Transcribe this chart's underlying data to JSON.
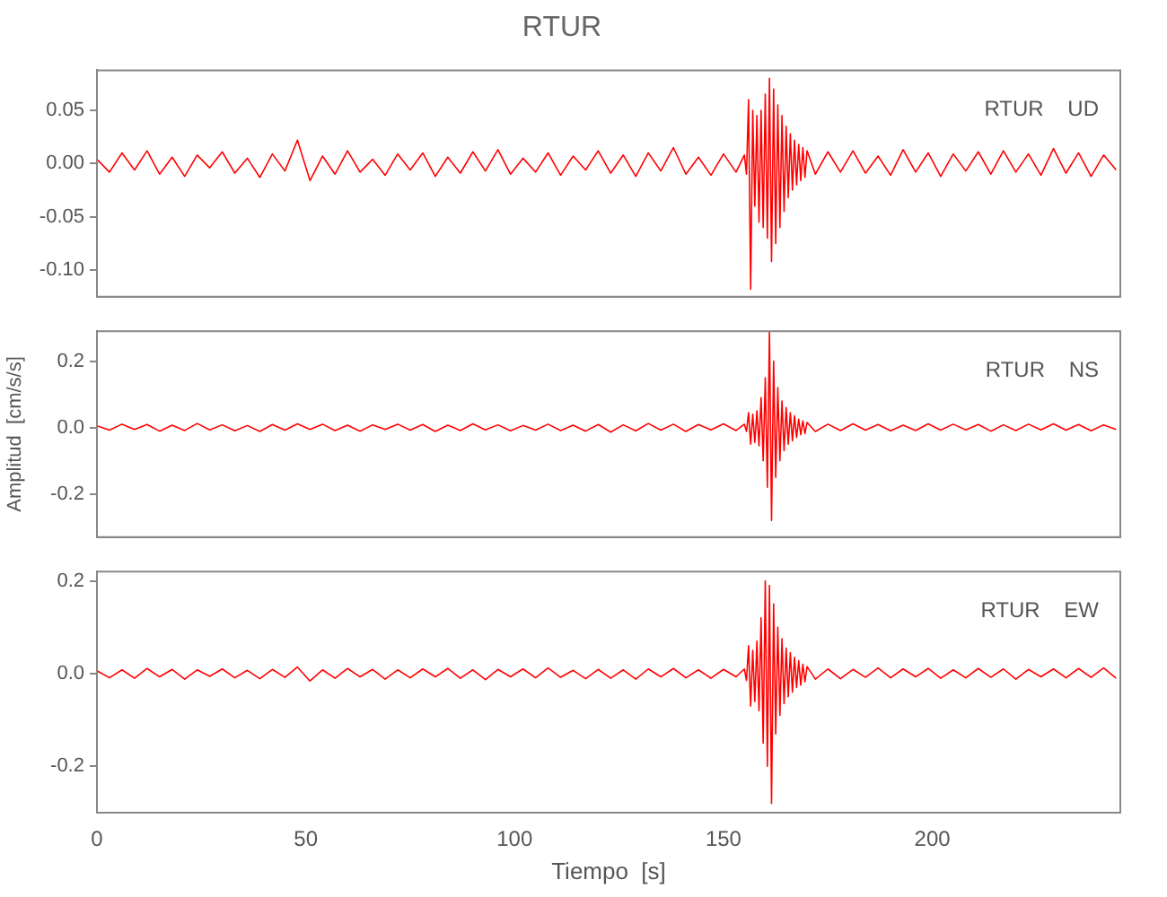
{
  "chart_data": [
    {
      "type": "line",
      "title": "RTUR",
      "annotations": [
        "RTUR    UD"
      ],
      "xlim": [
        0,
        245
      ],
      "xticks": [
        0,
        50,
        100,
        150,
        200
      ],
      "ylim": [
        -0.125,
        0.0875
      ],
      "yticks": [
        {
          "value": -0.1,
          "label": "-0.10"
        },
        {
          "value": -0.05,
          "label": "-0.05"
        },
        {
          "value": 0,
          "label": "0.00"
        },
        {
          "value": 0.05,
          "label": "0.05"
        }
      ],
      "tick_labels": "y",
      "marker": "none",
      "line_style": "solid",
      "x": [
        0,
        3,
        6,
        9,
        12,
        15,
        18,
        21,
        24,
        27,
        30,
        33,
        36,
        39,
        42,
        45,
        48,
        51,
        54,
        57,
        60,
        63,
        66,
        69,
        72,
        75,
        78,
        81,
        84,
        87,
        90,
        93,
        96,
        99,
        102,
        105,
        108,
        111,
        114,
        117,
        120,
        123,
        126,
        129,
        132,
        135,
        138,
        141,
        144,
        147,
        150,
        153,
        155,
        155.5,
        156,
        156.5,
        157,
        157.5,
        158,
        158.5,
        159,
        159.5,
        160,
        160.5,
        161,
        161.5,
        162,
        162.5,
        163,
        163.5,
        164,
        164.5,
        165,
        165.5,
        166,
        166.5,
        167,
        167.5,
        168,
        168.5,
        169,
        169.5,
        170,
        172,
        175,
        178,
        181,
        184,
        187,
        190,
        193,
        196,
        199,
        202,
        205,
        208,
        211,
        214,
        217,
        220,
        223,
        226,
        229,
        232,
        235,
        238,
        241,
        244
      ],
      "series": [
        {
          "color": "#ff0000",
          "values": [
            0.004,
            -0.008,
            0.01,
            -0.006,
            0.012,
            -0.01,
            0.006,
            -0.012,
            0.008,
            -0.004,
            0.011,
            -0.009,
            0.005,
            -0.013,
            0.009,
            -0.007,
            0.022,
            -0.016,
            0.007,
            -0.01,
            0.012,
            -0.008,
            0.004,
            -0.011,
            0.009,
            -0.006,
            0.01,
            -0.012,
            0.006,
            -0.009,
            0.011,
            -0.007,
            0.013,
            -0.01,
            0.005,
            -0.008,
            0.01,
            -0.011,
            0.007,
            -0.006,
            0.012,
            -0.009,
            0.008,
            -0.012,
            0.01,
            -0.007,
            0.015,
            -0.01,
            0.006,
            -0.011,
            0.009,
            -0.008,
            0.008,
            -0.01,
            0.06,
            -0.118,
            0.05,
            -0.04,
            0.045,
            -0.055,
            0.05,
            -0.06,
            0.065,
            -0.07,
            0.08,
            -0.092,
            0.07,
            -0.075,
            0.055,
            -0.06,
            0.045,
            -0.045,
            0.035,
            -0.032,
            0.028,
            -0.025,
            0.022,
            -0.02,
            0.018,
            -0.016,
            0.015,
            -0.013,
            0.012,
            -0.01,
            0.011,
            -0.008,
            0.012,
            -0.009,
            0.007,
            -0.011,
            0.013,
            -0.008,
            0.01,
            -0.012,
            0.009,
            -0.007,
            0.011,
            -0.01,
            0.012,
            -0.008,
            0.009,
            -0.011,
            0.014,
            -0.009,
            0.01,
            -0.012,
            0.008,
            -0.006
          ]
        }
      ]
    },
    {
      "type": "line",
      "ylabel": "Amplitud  [cm/s/s]",
      "annotations": [
        "RTUR    NS"
      ],
      "xlim": [
        0,
        245
      ],
      "xticks": [
        0,
        50,
        100,
        150,
        200
      ],
      "ylim": [
        -0.33,
        0.29
      ],
      "yticks": [
        {
          "value": -0.2,
          "label": "-0.2"
        },
        {
          "value": 0,
          "label": "0.0"
        },
        {
          "value": 0.2,
          "label": "0.2"
        }
      ],
      "tick_labels": "y",
      "marker": "none",
      "line_style": "solid",
      "x": [
        0,
        3,
        6,
        9,
        12,
        15,
        18,
        21,
        24,
        27,
        30,
        33,
        36,
        39,
        42,
        45,
        48,
        51,
        54,
        57,
        60,
        63,
        66,
        69,
        72,
        75,
        78,
        81,
        84,
        87,
        90,
        93,
        96,
        99,
        102,
        105,
        108,
        111,
        114,
        117,
        120,
        123,
        126,
        129,
        132,
        135,
        138,
        141,
        144,
        147,
        150,
        153,
        155,
        155.5,
        156,
        156.5,
        157,
        157.5,
        158,
        158.5,
        159,
        159.5,
        160,
        160.5,
        161,
        161.5,
        162,
        162.5,
        163,
        163.5,
        164,
        164.5,
        165,
        165.5,
        166,
        166.5,
        167,
        167.5,
        168,
        168.5,
        169,
        169.5,
        170,
        172,
        175,
        178,
        181,
        184,
        187,
        190,
        193,
        196,
        199,
        202,
        205,
        208,
        211,
        214,
        217,
        220,
        223,
        226,
        229,
        232,
        235,
        238,
        241,
        244
      ],
      "series": [
        {
          "color": "#ff0000",
          "values": [
            0.005,
            -0.008,
            0.01,
            -0.006,
            0.009,
            -0.011,
            0.007,
            -0.009,
            0.012,
            -0.007,
            0.008,
            -0.01,
            0.006,
            -0.012,
            0.009,
            -0.008,
            0.011,
            -0.006,
            0.01,
            -0.009,
            0.007,
            -0.011,
            0.008,
            -0.006,
            0.01,
            -0.008,
            0.009,
            -0.012,
            0.007,
            -0.009,
            0.011,
            -0.007,
            0.008,
            -0.01,
            0.006,
            -0.008,
            0.01,
            -0.009,
            0.007,
            -0.011,
            0.009,
            -0.014,
            0.008,
            -0.01,
            0.012,
            -0.008,
            0.01,
            -0.012,
            0.009,
            -0.007,
            0.011,
            -0.009,
            0.01,
            -0.012,
            0.045,
            -0.05,
            0.04,
            -0.045,
            0.05,
            -0.055,
            0.09,
            -0.1,
            0.15,
            -0.18,
            0.29,
            -0.28,
            0.2,
            -0.15,
            0.12,
            -0.1,
            0.08,
            -0.07,
            0.06,
            -0.05,
            0.045,
            -0.04,
            0.035,
            -0.03,
            0.025,
            -0.022,
            0.02,
            -0.018,
            0.015,
            -0.012,
            0.01,
            -0.009,
            0.011,
            -0.008,
            0.009,
            -0.01,
            0.007,
            -0.009,
            0.011,
            -0.008,
            0.01,
            -0.007,
            0.009,
            -0.011,
            0.008,
            -0.009,
            0.01,
            -0.007,
            0.011,
            -0.008,
            0.009,
            -0.01,
            0.008,
            -0.006
          ]
        }
      ]
    },
    {
      "type": "line",
      "xlabel": "Tiempo  [s]",
      "annotations": [
        "RTUR    EW"
      ],
      "xlim": [
        0,
        245
      ],
      "xticks": [
        0,
        50,
        100,
        150,
        200
      ],
      "ylim": [
        -0.3,
        0.22
      ],
      "yticks": [
        {
          "value": -0.2,
          "label": "-0.2"
        },
        {
          "value": 0,
          "label": "0.0"
        },
        {
          "value": 0.2,
          "label": "0.2"
        }
      ],
      "marker": "none",
      "line_style": "solid",
      "x": [
        0,
        3,
        6,
        9,
        12,
        15,
        18,
        21,
        24,
        27,
        30,
        33,
        36,
        39,
        42,
        45,
        48,
        51,
        54,
        57,
        60,
        63,
        66,
        69,
        72,
        75,
        78,
        81,
        84,
        87,
        90,
        93,
        96,
        99,
        102,
        105,
        108,
        111,
        114,
        117,
        120,
        123,
        126,
        129,
        132,
        135,
        138,
        141,
        144,
        147,
        150,
        153,
        155,
        155.5,
        156,
        156.5,
        157,
        157.5,
        158,
        158.5,
        159,
        159.5,
        160,
        160.5,
        161,
        161.5,
        162,
        162.5,
        163,
        163.5,
        164,
        164.5,
        165,
        165.5,
        166,
        166.5,
        167,
        167.5,
        168,
        168.5,
        169,
        169.5,
        170,
        172,
        175,
        178,
        181,
        184,
        187,
        190,
        193,
        196,
        199,
        202,
        205,
        208,
        211,
        214,
        217,
        220,
        223,
        226,
        229,
        232,
        235,
        238,
        241,
        244
      ],
      "series": [
        {
          "color": "#ff0000",
          "values": [
            0.006,
            -0.009,
            0.008,
            -0.01,
            0.011,
            -0.007,
            0.009,
            -0.012,
            0.008,
            -0.006,
            0.01,
            -0.009,
            0.007,
            -0.011,
            0.009,
            -0.008,
            0.014,
            -0.016,
            0.008,
            -0.01,
            0.011,
            -0.007,
            0.009,
            -0.012,
            0.008,
            -0.009,
            0.01,
            -0.007,
            0.011,
            -0.01,
            0.008,
            -0.013,
            0.009,
            -0.007,
            0.01,
            -0.009,
            0.012,
            -0.008,
            0.007,
            -0.011,
            0.009,
            -0.01,
            0.008,
            -0.012,
            0.01,
            -0.007,
            0.011,
            -0.009,
            0.008,
            -0.01,
            0.009,
            -0.007,
            0.01,
            -0.015,
            0.06,
            -0.07,
            0.05,
            -0.06,
            0.07,
            -0.08,
            0.12,
            -0.15,
            0.2,
            -0.2,
            0.19,
            -0.28,
            0.15,
            -0.13,
            0.1,
            -0.09,
            0.075,
            -0.065,
            0.055,
            -0.05,
            0.045,
            -0.04,
            0.035,
            -0.03,
            0.028,
            -0.025,
            0.02,
            -0.018,
            0.015,
            -0.012,
            0.01,
            -0.011,
            0.009,
            -0.008,
            0.012,
            -0.009,
            0.01,
            -0.007,
            0.011,
            -0.01,
            0.008,
            -0.009,
            0.011,
            -0.008,
            0.01,
            -0.012,
            0.009,
            -0.007,
            0.01,
            -0.009,
            0.011,
            -0.008,
            0.012,
            -0.01
          ]
        }
      ]
    }
  ]
}
